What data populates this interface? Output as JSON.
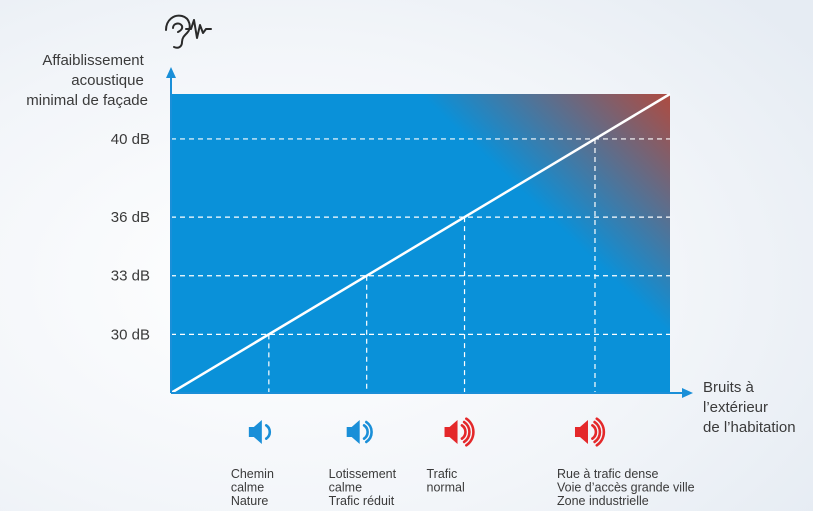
{
  "header": {
    "icon": "ear-soundwave-icon"
  },
  "chart_data": {
    "type": "line",
    "ylabel_lines": [
      "Affaiblissement",
      "acoustique",
      "minimal de façade"
    ],
    "xlabel_lines": [
      "Bruits à",
      "l’extérieur",
      "de l’habitation"
    ],
    "yticks": [
      {
        "label": "30 dB",
        "value": 30
      },
      {
        "label": "33 dB",
        "value": 33
      },
      {
        "label": "36 dB",
        "value": 36
      },
      {
        "label": "40 dB",
        "value": 40
      }
    ],
    "categories": [
      {
        "lines": [
          "Chemin",
          "calme",
          "Nature"
        ],
        "value": 30,
        "icon": "speaker-low-icon",
        "level": 1,
        "color": "#1a8fd8"
      },
      {
        "lines": [
          "Lotissement",
          "calme",
          "Trafic réduit"
        ],
        "value": 33,
        "icon": "speaker-medium-icon",
        "level": 2,
        "color": "#1a8fd8"
      },
      {
        "lines": [
          "Trafic",
          "normal"
        ],
        "value": 36,
        "icon": "speaker-loud-icon",
        "level": 3,
        "color": "#e4282a"
      },
      {
        "lines": [
          "Rue à trafic dense",
          "Voie d’accès grande ville",
          "Zone industrielle"
        ],
        "value": 40,
        "icon": "speaker-loud-icon",
        "level": 3,
        "color": "#e4282a"
      }
    ],
    "colors": {
      "plot_blue": "#0a91d9",
      "plot_red": "#b14a3e",
      "axis": "#1a8fd8",
      "line": "#ffffff"
    }
  }
}
